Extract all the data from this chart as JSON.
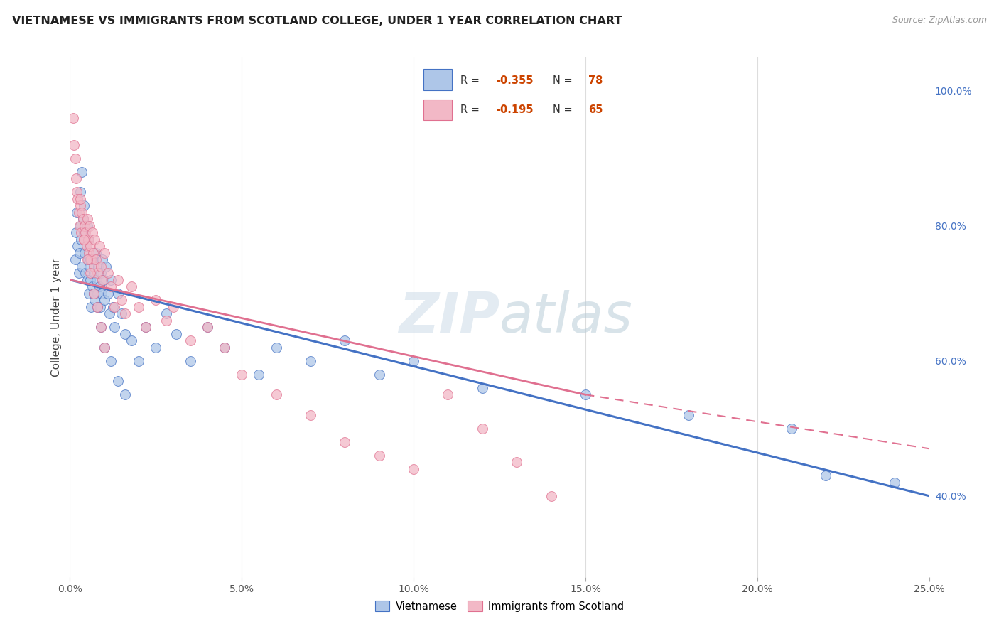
{
  "title": "VIETNAMESE VS IMMIGRANTS FROM SCOTLAND COLLEGE, UNDER 1 YEAR CORRELATION CHART",
  "source": "Source: ZipAtlas.com",
  "xlabel_vals": [
    0.0,
    5.0,
    10.0,
    15.0,
    20.0,
    25.0
  ],
  "ylabel_vals": [
    40.0,
    60.0,
    80.0,
    100.0
  ],
  "xlim": [
    0,
    25
  ],
  "ylim": [
    28,
    105
  ],
  "watermark": "ZIPatlas",
  "legend_label1": "Vietnamese",
  "legend_label2": "Immigrants from Scotland",
  "R1": -0.355,
  "N1": 78,
  "R2": -0.195,
  "N2": 65,
  "color_blue": "#aec6e8",
  "color_pink": "#f2b8c6",
  "line_blue": "#4472c4",
  "line_pink": "#e07090",
  "blue_x": [
    0.15,
    0.18,
    0.2,
    0.22,
    0.25,
    0.28,
    0.3,
    0.32,
    0.35,
    0.38,
    0.4,
    0.42,
    0.45,
    0.48,
    0.5,
    0.52,
    0.55,
    0.58,
    0.6,
    0.62,
    0.65,
    0.68,
    0.7,
    0.72,
    0.75,
    0.78,
    0.8,
    0.82,
    0.85,
    0.88,
    0.9,
    0.92,
    0.95,
    0.98,
    1.0,
    1.05,
    1.1,
    1.15,
    1.2,
    1.25,
    1.3,
    1.4,
    1.5,
    1.6,
    1.8,
    2.0,
    2.2,
    2.5,
    2.8,
    3.1,
    3.5,
    4.0,
    4.5,
    5.5,
    6.0,
    7.0,
    8.0,
    9.0,
    10.0,
    12.0,
    15.0,
    18.0,
    21.0,
    22.0,
    24.0,
    0.3,
    0.35,
    0.4,
    0.5,
    0.55,
    0.6,
    0.7,
    0.8,
    0.9,
    1.0,
    1.2,
    1.4,
    1.6
  ],
  "blue_y": [
    75,
    79,
    82,
    77,
    73,
    76,
    80,
    78,
    74,
    81,
    79,
    76,
    73,
    77,
    72,
    75,
    70,
    74,
    72,
    68,
    71,
    75,
    73,
    69,
    76,
    72,
    70,
    74,
    71,
    68,
    73,
    70,
    75,
    72,
    69,
    74,
    70,
    67,
    72,
    68,
    65,
    70,
    67,
    64,
    63,
    60,
    65,
    62,
    67,
    64,
    60,
    65,
    62,
    58,
    62,
    60,
    63,
    58,
    60,
    56,
    55,
    52,
    50,
    43,
    42,
    85,
    88,
    83,
    80,
    78,
    75,
    70,
    68,
    65,
    62,
    60,
    57,
    55
  ],
  "pink_x": [
    0.1,
    0.12,
    0.15,
    0.18,
    0.2,
    0.22,
    0.25,
    0.28,
    0.3,
    0.32,
    0.35,
    0.38,
    0.4,
    0.42,
    0.45,
    0.48,
    0.5,
    0.52,
    0.55,
    0.58,
    0.6,
    0.62,
    0.65,
    0.68,
    0.7,
    0.72,
    0.75,
    0.8,
    0.85,
    0.9,
    0.95,
    1.0,
    1.1,
    1.2,
    1.3,
    1.4,
    1.5,
    1.6,
    1.8,
    2.0,
    2.2,
    2.5,
    2.8,
    3.0,
    3.5,
    4.0,
    4.5,
    5.0,
    6.0,
    7.0,
    8.0,
    9.0,
    10.0,
    11.0,
    12.0,
    13.0,
    14.0,
    0.3,
    0.4,
    0.5,
    0.6,
    0.7,
    0.8,
    0.9,
    1.0
  ],
  "pink_y": [
    96,
    92,
    90,
    87,
    85,
    84,
    82,
    80,
    83,
    79,
    82,
    81,
    78,
    80,
    79,
    77,
    81,
    78,
    76,
    80,
    77,
    75,
    79,
    76,
    74,
    78,
    75,
    73,
    77,
    74,
    72,
    76,
    73,
    71,
    68,
    72,
    69,
    67,
    71,
    68,
    65,
    69,
    66,
    68,
    63,
    65,
    62,
    58,
    55,
    52,
    48,
    46,
    44,
    55,
    50,
    45,
    40,
    84,
    78,
    75,
    73,
    70,
    68,
    65,
    62
  ]
}
